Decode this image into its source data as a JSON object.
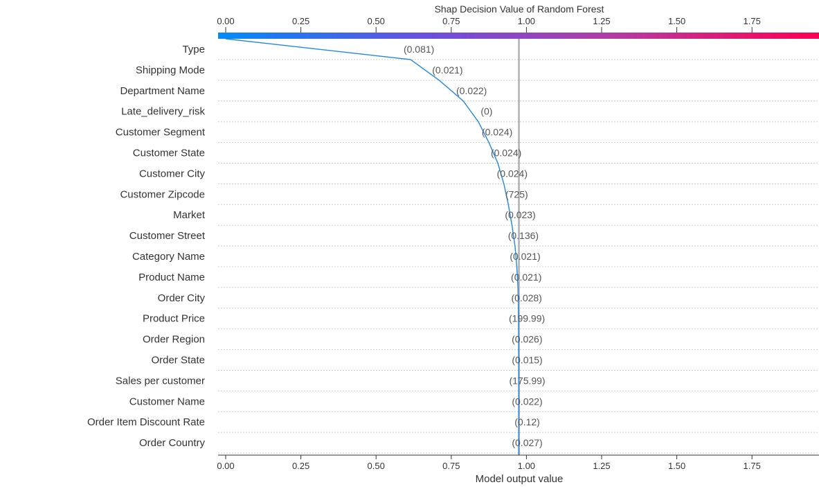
{
  "chart_data": {
    "type": "line",
    "title": "Shap Decision Value of Random Forest",
    "xlabel": "Model output value",
    "xlim": [
      0,
      2.0
    ],
    "xticks": [
      "0.00",
      "0.25",
      "0.50",
      "0.75",
      "1.00",
      "1.25",
      "1.50",
      "1.75"
    ],
    "base_value": 0.0,
    "expected_line_value": 0.975,
    "colors": {
      "gradient": [
        "#008bfb",
        "#6a4fe0",
        "#b23ca6",
        "#ff0051"
      ],
      "decision_line": "#1e88e5",
      "expected_line": "#b0b0b0",
      "grid": "#cccccc",
      "axis": "#333333"
    },
    "features": [
      {
        "name": "Type",
        "value_label": "(0.081)",
        "cumulative": 0.615
      },
      {
        "name": "Shipping Mode",
        "value_label": "(0.021)",
        "cumulative": 0.71
      },
      {
        "name": "Department Name",
        "value_label": "(0.022)",
        "cumulative": 0.79
      },
      {
        "name": "Late_delivery_risk",
        "value_label": "(0)",
        "cumulative": 0.84
      },
      {
        "name": "Customer Segment",
        "value_label": "(0.024)",
        "cumulative": 0.875
      },
      {
        "name": "Customer State",
        "value_label": "(0.024)",
        "cumulative": 0.905
      },
      {
        "name": "Customer City",
        "value_label": "(0.024)",
        "cumulative": 0.925
      },
      {
        "name": "Customer Zipcode",
        "value_label": "(725)",
        "cumulative": 0.94
      },
      {
        "name": "Market",
        "value_label": "(0.023)",
        "cumulative": 0.952
      },
      {
        "name": "Customer Street",
        "value_label": "(0.136)",
        "cumulative": 0.962
      },
      {
        "name": "Category Name",
        "value_label": "(0.021)",
        "cumulative": 0.968
      },
      {
        "name": "Product Name",
        "value_label": "(0.021)",
        "cumulative": 0.972
      },
      {
        "name": "Order City",
        "value_label": "(0.028)",
        "cumulative": 0.973
      },
      {
        "name": "Product Price",
        "value_label": "(199.99)",
        "cumulative": 0.974
      },
      {
        "name": "Order Region",
        "value_label": "(0.026)",
        "cumulative": 0.9745
      },
      {
        "name": "Order State",
        "value_label": "(0.015)",
        "cumulative": 0.975
      },
      {
        "name": "Sales per customer",
        "value_label": "(175.99)",
        "cumulative": 0.975
      },
      {
        "name": "Customer Name",
        "value_label": "(0.022)",
        "cumulative": 0.975
      },
      {
        "name": "Order Item Discount Rate",
        "value_label": "(0.12)",
        "cumulative": 0.975
      },
      {
        "name": "Order Country",
        "value_label": "(0.027)",
        "cumulative": 0.975
      }
    ],
    "grid": true
  }
}
